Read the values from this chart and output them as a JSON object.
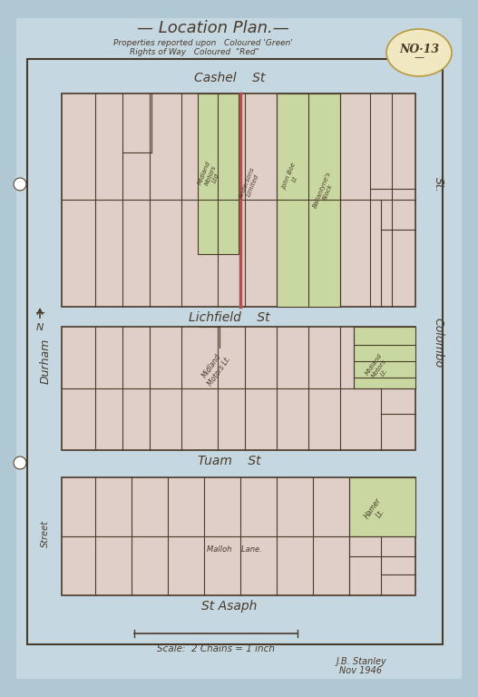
{
  "title": "-- Location Plan.--",
  "subtitle1": "Properties reported upon   Coloured 'Green'",
  "subtitle2": "Rights of Way   Coloured \"Red\"",
  "no_label": "NO·13",
  "bg_color": "#b0c8d4",
  "paper_color": "#c5d8e2",
  "block_bg": "#e0cfc8",
  "green_fill": "#c8d8a0",
  "red_line": "#b05050",
  "line_color": "#4a3a2a",
  "scale_text": "Scale:  2 Chains = 1 inch",
  "signature1": "J.B. Stanley",
  "signature2": "Nov 1946"
}
